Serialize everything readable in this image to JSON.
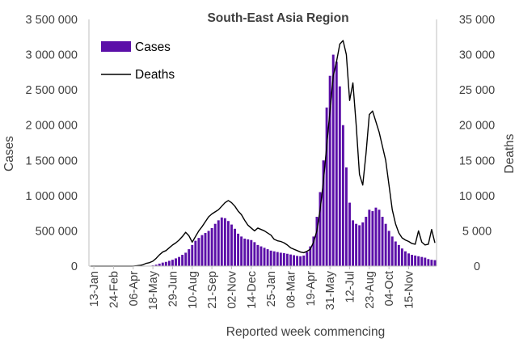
{
  "chart_data": {
    "type": "bar",
    "title": "South-East Asia Region",
    "xlabel": "Reported week commencing",
    "ylabel": "Cases",
    "y2label": "Deaths",
    "ylim": [
      0,
      3500000
    ],
    "y2lim": [
      0,
      35000
    ],
    "yticks": [
      "0",
      "500 000",
      "1 000 000",
      "1 500 000",
      "2 000 000",
      "2 500 000",
      "3 000 000",
      "3 500 000"
    ],
    "y2ticks": [
      "0",
      "5 000",
      "10 000",
      "15 000",
      "20 000",
      "25 000",
      "30 000",
      "35 000"
    ],
    "x_tick_labels": [
      "13-Jan",
      "24-Feb",
      "06-Apr",
      "18-May",
      "29-Jun",
      "10-Aug",
      "21-Sep",
      "02-Nov",
      "14-Dec",
      "25-Jan",
      "08-Mar",
      "19-Apr",
      "31-May",
      "12-Jul",
      "23-Aug",
      "04-Oct",
      "15-Nov"
    ],
    "x_tick_interval_weeks": 6,
    "legend_position": "top-left",
    "grid": false,
    "colors": {
      "cases": "#5b0fa8",
      "deaths": "#000000",
      "axis": "#bfbfbf",
      "text": "#404040"
    },
    "series": [
      {
        "name": "Cases",
        "type": "bar",
        "axis": "left",
        "values": [
          0,
          0,
          0,
          0,
          0,
          0,
          0,
          0,
          0,
          0,
          0,
          0,
          0,
          0,
          0,
          1000,
          2000,
          4000,
          6000,
          10000,
          20000,
          35000,
          50000,
          60000,
          75000,
          90000,
          110000,
          130000,
          160000,
          190000,
          240000,
          300000,
          360000,
          400000,
          440000,
          470000,
          500000,
          540000,
          600000,
          650000,
          690000,
          680000,
          640000,
          590000,
          530000,
          460000,
          420000,
          390000,
          380000,
          370000,
          340000,
          300000,
          280000,
          260000,
          240000,
          220000,
          210000,
          200000,
          190000,
          185000,
          175000,
          165000,
          155000,
          145000,
          140000,
          150000,
          200000,
          280000,
          420000,
          700000,
          1050000,
          1500000,
          2250000,
          2700000,
          3000000,
          2900000,
          2550000,
          2000000,
          1400000,
          900000,
          650000,
          600000,
          580000,
          620000,
          700000,
          800000,
          780000,
          830000,
          800000,
          700000,
          600000,
          500000,
          420000,
          350000,
          300000,
          250000,
          210000,
          180000,
          160000,
          150000,
          140000,
          130000,
          120000,
          100000,
          90000,
          85000
        ]
      },
      {
        "name": "Deaths",
        "type": "line",
        "axis": "right",
        "values": [
          0,
          0,
          0,
          0,
          0,
          0,
          0,
          0,
          0,
          0,
          0,
          0,
          0,
          0,
          50,
          100,
          200,
          400,
          500,
          700,
          1100,
          1600,
          2000,
          2200,
          2600,
          3000,
          3300,
          3700,
          4200,
          4800,
          4300,
          3400,
          4200,
          5000,
          5600,
          6300,
          7000,
          7400,
          7700,
          8000,
          8500,
          9000,
          9300,
          9000,
          8500,
          7800,
          7300,
          6500,
          5800,
          5400,
          5000,
          5400,
          5200,
          5000,
          4700,
          4400,
          3800,
          3600,
          3500,
          3300,
          3000,
          2600,
          2400,
          2200,
          2000,
          1900,
          2100,
          2400,
          3400,
          5000,
          8000,
          12000,
          17000,
          22000,
          27000,
          29000,
          31500,
          32000,
          30000,
          23500,
          26000,
          20000,
          13000,
          11500,
          16000,
          21500,
          22000,
          20500,
          19000,
          17000,
          15000,
          11500,
          8000,
          6000,
          4700,
          4000,
          3700,
          3500,
          3200,
          3100,
          5000,
          3400,
          3000,
          3100,
          5200,
          3300
        ]
      }
    ]
  }
}
